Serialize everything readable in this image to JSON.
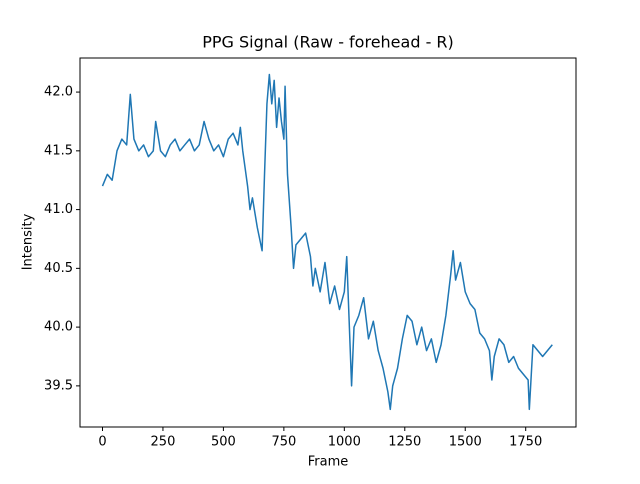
{
  "chart_data": {
    "type": "line",
    "title": "PPG Signal (Raw - forehead - R)",
    "x_label": "Frame",
    "y_label": "Intensity",
    "x": [
      0,
      20,
      40,
      60,
      80,
      100,
      115,
      130,
      150,
      170,
      190,
      210,
      220,
      240,
      260,
      280,
      300,
      320,
      340,
      360,
      380,
      400,
      420,
      440,
      460,
      480,
      500,
      520,
      540,
      560,
      570,
      580,
      590,
      600,
      610,
      620,
      640,
      660,
      670,
      680,
      690,
      700,
      710,
      720,
      730,
      740,
      750,
      755,
      765,
      780,
      790,
      800,
      820,
      840,
      860,
      870,
      880,
      900,
      920,
      940,
      960,
      980,
      1000,
      1010,
      1020,
      1030,
      1040,
      1060,
      1080,
      1100,
      1120,
      1140,
      1160,
      1180,
      1190,
      1200,
      1220,
      1240,
      1260,
      1280,
      1300,
      1320,
      1340,
      1360,
      1380,
      1400,
      1420,
      1440,
      1450,
      1460,
      1480,
      1500,
      1520,
      1540,
      1560,
      1580,
      1600,
      1610,
      1620,
      1640,
      1660,
      1680,
      1700,
      1720,
      1740,
      1760,
      1765,
      1780,
      1800,
      1820,
      1840,
      1860
    ],
    "series": [
      {
        "name": "PPG",
        "color": "#1f77b4",
        "values": [
          41.2,
          41.3,
          41.25,
          41.5,
          41.6,
          41.55,
          41.98,
          41.6,
          41.5,
          41.55,
          41.45,
          41.5,
          41.75,
          41.5,
          41.45,
          41.55,
          41.6,
          41.5,
          41.55,
          41.6,
          41.5,
          41.55,
          41.75,
          41.6,
          41.5,
          41.55,
          41.45,
          41.6,
          41.65,
          41.55,
          41.7,
          41.5,
          41.35,
          41.2,
          41.0,
          41.1,
          40.85,
          40.65,
          41.3,
          41.9,
          42.15,
          41.9,
          42.1,
          41.7,
          41.95,
          41.75,
          41.6,
          42.05,
          41.3,
          40.85,
          40.5,
          40.7,
          40.75,
          40.8,
          40.6,
          40.35,
          40.5,
          40.3,
          40.55,
          40.2,
          40.35,
          40.15,
          40.3,
          40.6,
          40.05,
          39.5,
          40.0,
          40.1,
          40.25,
          39.9,
          40.05,
          39.8,
          39.65,
          39.45,
          39.3,
          39.5,
          39.65,
          39.9,
          40.1,
          40.05,
          39.85,
          40.0,
          39.8,
          39.9,
          39.7,
          39.85,
          40.1,
          40.45,
          40.65,
          40.4,
          40.55,
          40.3,
          40.2,
          40.15,
          39.95,
          39.9,
          39.8,
          39.55,
          39.75,
          39.9,
          39.85,
          39.7,
          39.75,
          39.65,
          39.6,
          39.55,
          39.3,
          39.85,
          39.8,
          39.75,
          39.8,
          39.85
        ]
      }
    ],
    "xlim": [
      -93,
      1958
    ],
    "ylim": [
      39.15,
      42.29
    ],
    "xticks": [
      0,
      250,
      500,
      750,
      1000,
      1250,
      1500,
      1750
    ],
    "yticks": [
      39.5,
      {
        "value": 40.0,
        "label": "40.0"
      },
      40.5,
      {
        "value": 41.0,
        "label": "41.0"
      },
      41.5,
      {
        "value": 42.0,
        "label": "42.0"
      }
    ]
  }
}
